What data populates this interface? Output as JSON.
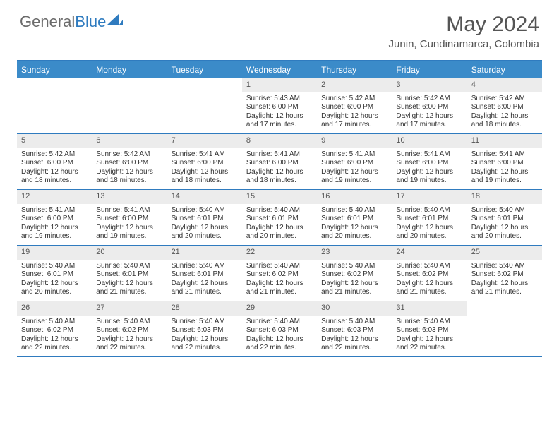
{
  "logo": {
    "text_gray": "General",
    "text_blue": "Blue"
  },
  "title": "May 2024",
  "location": "Junin, Cundinamarca, Colombia",
  "colors": {
    "header_blue": "#3b8bc9",
    "border_blue": "#2f7bbf",
    "daynum_bg": "#ececec",
    "text_gray": "#555555",
    "text_dark": "#333333",
    "logo_gray": "#6b6b6b"
  },
  "day_names": [
    "Sunday",
    "Monday",
    "Tuesday",
    "Wednesday",
    "Thursday",
    "Friday",
    "Saturday"
  ],
  "weeks": [
    [
      {
        "day": "",
        "lines": []
      },
      {
        "day": "",
        "lines": []
      },
      {
        "day": "",
        "lines": []
      },
      {
        "day": "1",
        "lines": [
          "Sunrise: 5:43 AM",
          "Sunset: 6:00 PM",
          "Daylight: 12 hours and 17 minutes."
        ]
      },
      {
        "day": "2",
        "lines": [
          "Sunrise: 5:42 AM",
          "Sunset: 6:00 PM",
          "Daylight: 12 hours and 17 minutes."
        ]
      },
      {
        "day": "3",
        "lines": [
          "Sunrise: 5:42 AM",
          "Sunset: 6:00 PM",
          "Daylight: 12 hours and 17 minutes."
        ]
      },
      {
        "day": "4",
        "lines": [
          "Sunrise: 5:42 AM",
          "Sunset: 6:00 PM",
          "Daylight: 12 hours and 18 minutes."
        ]
      }
    ],
    [
      {
        "day": "5",
        "lines": [
          "Sunrise: 5:42 AM",
          "Sunset: 6:00 PM",
          "Daylight: 12 hours and 18 minutes."
        ]
      },
      {
        "day": "6",
        "lines": [
          "Sunrise: 5:42 AM",
          "Sunset: 6:00 PM",
          "Daylight: 12 hours and 18 minutes."
        ]
      },
      {
        "day": "7",
        "lines": [
          "Sunrise: 5:41 AM",
          "Sunset: 6:00 PM",
          "Daylight: 12 hours and 18 minutes."
        ]
      },
      {
        "day": "8",
        "lines": [
          "Sunrise: 5:41 AM",
          "Sunset: 6:00 PM",
          "Daylight: 12 hours and 18 minutes."
        ]
      },
      {
        "day": "9",
        "lines": [
          "Sunrise: 5:41 AM",
          "Sunset: 6:00 PM",
          "Daylight: 12 hours and 19 minutes."
        ]
      },
      {
        "day": "10",
        "lines": [
          "Sunrise: 5:41 AM",
          "Sunset: 6:00 PM",
          "Daylight: 12 hours and 19 minutes."
        ]
      },
      {
        "day": "11",
        "lines": [
          "Sunrise: 5:41 AM",
          "Sunset: 6:00 PM",
          "Daylight: 12 hours and 19 minutes."
        ]
      }
    ],
    [
      {
        "day": "12",
        "lines": [
          "Sunrise: 5:41 AM",
          "Sunset: 6:00 PM",
          "Daylight: 12 hours and 19 minutes."
        ]
      },
      {
        "day": "13",
        "lines": [
          "Sunrise: 5:41 AM",
          "Sunset: 6:00 PM",
          "Daylight: 12 hours and 19 minutes."
        ]
      },
      {
        "day": "14",
        "lines": [
          "Sunrise: 5:40 AM",
          "Sunset: 6:01 PM",
          "Daylight: 12 hours and 20 minutes."
        ]
      },
      {
        "day": "15",
        "lines": [
          "Sunrise: 5:40 AM",
          "Sunset: 6:01 PM",
          "Daylight: 12 hours and 20 minutes."
        ]
      },
      {
        "day": "16",
        "lines": [
          "Sunrise: 5:40 AM",
          "Sunset: 6:01 PM",
          "Daylight: 12 hours and 20 minutes."
        ]
      },
      {
        "day": "17",
        "lines": [
          "Sunrise: 5:40 AM",
          "Sunset: 6:01 PM",
          "Daylight: 12 hours and 20 minutes."
        ]
      },
      {
        "day": "18",
        "lines": [
          "Sunrise: 5:40 AM",
          "Sunset: 6:01 PM",
          "Daylight: 12 hours and 20 minutes."
        ]
      }
    ],
    [
      {
        "day": "19",
        "lines": [
          "Sunrise: 5:40 AM",
          "Sunset: 6:01 PM",
          "Daylight: 12 hours and 20 minutes."
        ]
      },
      {
        "day": "20",
        "lines": [
          "Sunrise: 5:40 AM",
          "Sunset: 6:01 PM",
          "Daylight: 12 hours and 21 minutes."
        ]
      },
      {
        "day": "21",
        "lines": [
          "Sunrise: 5:40 AM",
          "Sunset: 6:01 PM",
          "Daylight: 12 hours and 21 minutes."
        ]
      },
      {
        "day": "22",
        "lines": [
          "Sunrise: 5:40 AM",
          "Sunset: 6:02 PM",
          "Daylight: 12 hours and 21 minutes."
        ]
      },
      {
        "day": "23",
        "lines": [
          "Sunrise: 5:40 AM",
          "Sunset: 6:02 PM",
          "Daylight: 12 hours and 21 minutes."
        ]
      },
      {
        "day": "24",
        "lines": [
          "Sunrise: 5:40 AM",
          "Sunset: 6:02 PM",
          "Daylight: 12 hours and 21 minutes."
        ]
      },
      {
        "day": "25",
        "lines": [
          "Sunrise: 5:40 AM",
          "Sunset: 6:02 PM",
          "Daylight: 12 hours and 21 minutes."
        ]
      }
    ],
    [
      {
        "day": "26",
        "lines": [
          "Sunrise: 5:40 AM",
          "Sunset: 6:02 PM",
          "Daylight: 12 hours and 22 minutes."
        ]
      },
      {
        "day": "27",
        "lines": [
          "Sunrise: 5:40 AM",
          "Sunset: 6:02 PM",
          "Daylight: 12 hours and 22 minutes."
        ]
      },
      {
        "day": "28",
        "lines": [
          "Sunrise: 5:40 AM",
          "Sunset: 6:03 PM",
          "Daylight: 12 hours and 22 minutes."
        ]
      },
      {
        "day": "29",
        "lines": [
          "Sunrise: 5:40 AM",
          "Sunset: 6:03 PM",
          "Daylight: 12 hours and 22 minutes."
        ]
      },
      {
        "day": "30",
        "lines": [
          "Sunrise: 5:40 AM",
          "Sunset: 6:03 PM",
          "Daylight: 12 hours and 22 minutes."
        ]
      },
      {
        "day": "31",
        "lines": [
          "Sunrise: 5:40 AM",
          "Sunset: 6:03 PM",
          "Daylight: 12 hours and 22 minutes."
        ]
      },
      {
        "day": "",
        "lines": []
      }
    ]
  ]
}
